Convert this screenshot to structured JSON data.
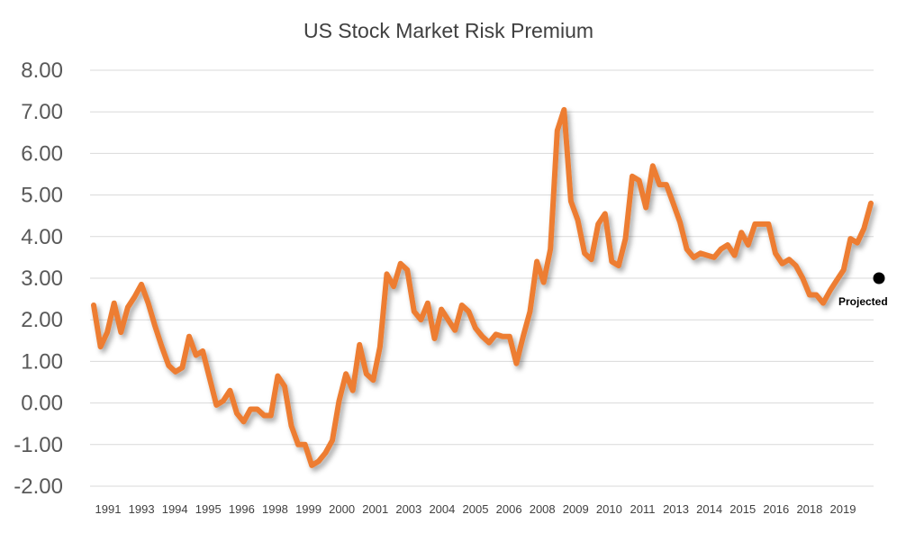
{
  "chart_data": {
    "type": "line",
    "title": "US Stock Market Risk Premium",
    "xlabel": "",
    "ylabel": "",
    "ylim": [
      -2.0,
      8.0
    ],
    "yticks": [
      "-2.00",
      "-1.00",
      "0.00",
      "1.00",
      "2.00",
      "3.00",
      "4.00",
      "5.00",
      "6.00",
      "7.00",
      "8.00"
    ],
    "xticks": [
      "1991",
      "1993",
      "1994",
      "1995",
      "1996",
      "1998",
      "1999",
      "2000",
      "2001",
      "2003",
      "2004",
      "2005",
      "2006",
      "2008",
      "2009",
      "2010",
      "2011",
      "2013",
      "2014",
      "2015",
      "2016",
      "2018",
      "2019"
    ],
    "grid": true,
    "series": [
      {
        "name": "US Stock Market Risk Premium",
        "color": "#ed7d31",
        "values": [
          2.35,
          1.35,
          1.7,
          2.4,
          1.7,
          2.3,
          2.55,
          2.85,
          2.4,
          1.85,
          1.35,
          0.9,
          0.75,
          0.85,
          1.6,
          1.15,
          1.25,
          0.6,
          -0.05,
          0.05,
          0.3,
          -0.25,
          -0.45,
          -0.15,
          -0.15,
          -0.3,
          -0.3,
          0.65,
          0.4,
          -0.55,
          -1.0,
          -1.0,
          -1.5,
          -1.4,
          -1.2,
          -0.9,
          0.05,
          0.7,
          0.3,
          1.4,
          0.7,
          0.55,
          1.35,
          3.1,
          2.8,
          3.35,
          3.2,
          2.2,
          2.0,
          2.4,
          1.55,
          2.25,
          2.0,
          1.75,
          2.35,
          2.2,
          1.8,
          1.6,
          1.45,
          1.65,
          1.6,
          1.6,
          0.95,
          1.6,
          2.2,
          3.4,
          2.9,
          3.7,
          6.55,
          7.05,
          4.85,
          4.4,
          3.6,
          3.45,
          4.3,
          4.55,
          3.4,
          3.3,
          3.95,
          5.45,
          5.35,
          4.7,
          5.7,
          5.25,
          5.25,
          4.8,
          4.35,
          3.7,
          3.5,
          3.6,
          3.55,
          3.5,
          3.7,
          3.8,
          3.55,
          4.1,
          3.8,
          4.3,
          4.3,
          4.3,
          3.6,
          3.35,
          3.45,
          3.3,
          3.0,
          2.6,
          2.6,
          2.4,
          2.7,
          2.95,
          3.2,
          3.95,
          3.85,
          4.2,
          4.8
        ]
      }
    ],
    "projected": {
      "label": "Projected",
      "value": 3.0,
      "color": "#000000"
    }
  }
}
